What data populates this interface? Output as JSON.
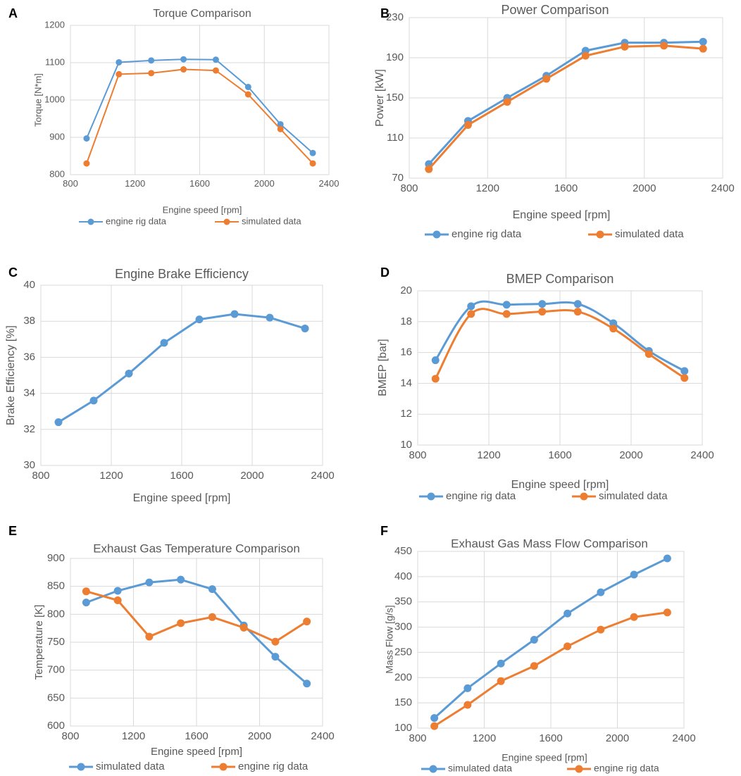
{
  "colors": {
    "blue": "#5b9bd5",
    "orange": "#ed7d31",
    "grid": "#d9d9d9",
    "text": "#595959"
  },
  "chart_data": [
    {
      "panel": "A",
      "type": "line",
      "title": "Torque Comparison",
      "xlabel": "Engine speed [rpm]",
      "ylabel": "Torque [N*m]",
      "xlim": [
        800,
        2400
      ],
      "ylim": [
        800,
        1200
      ],
      "xticks": [
        800,
        1200,
        1600,
        2000,
        2400
      ],
      "yticks": [
        800,
        900,
        1000,
        1100,
        1200
      ],
      "legend_position": "bottom",
      "series": [
        {
          "name": "engine rig data",
          "color": "blue",
          "x": [
            900,
            1100,
            1300,
            1500,
            1700,
            1900,
            2100,
            2300
          ],
          "y": [
            897,
            1101,
            1106,
            1109,
            1108,
            1035,
            935,
            858
          ]
        },
        {
          "name": "simulated data",
          "color": "orange",
          "x": [
            900,
            1100,
            1300,
            1500,
            1700,
            1900,
            2100,
            2300
          ],
          "y": [
            830,
            1069,
            1072,
            1082,
            1079,
            1015,
            922,
            830
          ]
        }
      ]
    },
    {
      "panel": "B",
      "type": "line",
      "title": "Power Comparison",
      "xlabel": "Engine speed [rpm]",
      "ylabel": "Power [kW]",
      "xlim": [
        800,
        2400
      ],
      "ylim": [
        70,
        230
      ],
      "xticks": [
        800,
        1200,
        1600,
        2000,
        2400
      ],
      "yticks": [
        70,
        110,
        150,
        190,
        230
      ],
      "legend_position": "bottom",
      "series": [
        {
          "name": "engine rig data",
          "color": "blue",
          "x": [
            900,
            1100,
            1300,
            1500,
            1700,
            1900,
            2100,
            2300
          ],
          "y": [
            84,
            127,
            150,
            172,
            197,
            205,
            205,
            206
          ]
        },
        {
          "name": "simulated data",
          "color": "orange",
          "x": [
            900,
            1100,
            1300,
            1500,
            1700,
            1900,
            2100,
            2300
          ],
          "y": [
            79,
            123,
            146,
            169,
            192,
            201,
            202,
            199
          ]
        }
      ]
    },
    {
      "panel": "C",
      "type": "line",
      "title": "Engine Brake Efficiency",
      "xlabel": "Engine speed  [rpm]",
      "ylabel": "Brake Efficiency [%]",
      "xlim": [
        800,
        2400
      ],
      "ylim": [
        30,
        40
      ],
      "xticks": [
        800,
        1200,
        1600,
        2000,
        2400
      ],
      "yticks": [
        30,
        32,
        34,
        36,
        38,
        40
      ],
      "legend_position": "none",
      "series": [
        {
          "name": "",
          "color": "blue",
          "x": [
            900,
            1100,
            1300,
            1500,
            1700,
            1900,
            2100,
            2300
          ],
          "y": [
            32.4,
            33.6,
            35.1,
            36.8,
            38.1,
            38.4,
            38.2,
            37.6
          ]
        }
      ]
    },
    {
      "panel": "D",
      "type": "line",
      "title": "BMEP Comparison",
      "xlabel": "Engine speed [rpm]",
      "ylabel": "BMEP [bar]",
      "xlim": [
        800,
        2400
      ],
      "ylim": [
        10,
        20
      ],
      "xticks": [
        800,
        1200,
        1600,
        2000,
        2400
      ],
      "yticks": [
        10,
        12,
        14,
        16,
        18,
        20
      ],
      "legend_position": "bottom",
      "smooth": true,
      "series": [
        {
          "name": "engine rig data",
          "color": "blue",
          "x": [
            900,
            1100,
            1300,
            1500,
            1700,
            1900,
            2100,
            2300
          ],
          "y": [
            15.5,
            19.0,
            19.1,
            19.15,
            19.15,
            17.9,
            16.1,
            14.8
          ]
        },
        {
          "name": "simulated data",
          "color": "orange",
          "x": [
            900,
            1100,
            1300,
            1500,
            1700,
            1900,
            2100,
            2300
          ],
          "y": [
            14.3,
            18.5,
            18.5,
            18.65,
            18.65,
            17.55,
            15.9,
            14.35
          ]
        }
      ]
    },
    {
      "panel": "E",
      "type": "line",
      "title": "Exhaust Gas Temperature Comparison",
      "xlabel": "Engine speed [rpm]",
      "ylabel": "Temperature [K]",
      "xlim": [
        800,
        2400
      ],
      "ylim": [
        600,
        900
      ],
      "xticks": [
        800,
        1200,
        1600,
        2000,
        2400
      ],
      "yticks": [
        600,
        650,
        700,
        750,
        800,
        850,
        900
      ],
      "legend_position": "bottom",
      "series": [
        {
          "name": "simulated data",
          "color": "blue",
          "x": [
            900,
            1100,
            1300,
            1500,
            1700,
            1900,
            2100,
            2300
          ],
          "y": [
            821,
            842,
            857,
            862,
            845,
            780,
            724,
            676
          ]
        },
        {
          "name": "engine rig data",
          "color": "orange",
          "x": [
            900,
            1100,
            1300,
            1500,
            1700,
            1900,
            2100,
            2300
          ],
          "y": [
            841,
            825,
            760,
            784,
            795,
            776,
            751,
            787
          ]
        }
      ]
    },
    {
      "panel": "F",
      "type": "line",
      "title": "Exhaust Gas Mass Flow Comparison",
      "xlabel": "Engine speed [rpm]",
      "ylabel": "Mass Flow [g/s]",
      "xlim": [
        800,
        2400
      ],
      "ylim": [
        100,
        450
      ],
      "xticks": [
        800,
        1200,
        1600,
        2000,
        2400
      ],
      "yticks": [
        100,
        150,
        200,
        250,
        300,
        350,
        400,
        450
      ],
      "legend_position": "bottom",
      "series": [
        {
          "name": "simulated data",
          "color": "blue",
          "x": [
            900,
            1100,
            1300,
            1500,
            1700,
            1900,
            2100,
            2300
          ],
          "y": [
            120,
            179,
            228,
            275,
            327,
            369,
            404,
            436
          ]
        },
        {
          "name": "engine rig data",
          "color": "orange",
          "x": [
            900,
            1100,
            1300,
            1500,
            1700,
            1900,
            2100,
            2300
          ],
          "y": [
            104,
            146,
            193,
            223,
            262,
            295,
            320,
            329
          ]
        }
      ]
    }
  ]
}
